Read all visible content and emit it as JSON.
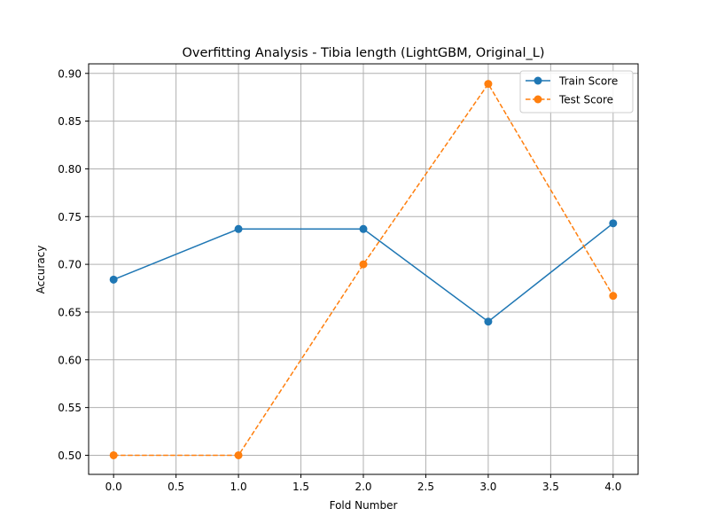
{
  "chart_data": {
    "type": "line",
    "title": "Overfitting Analysis - Tibia length (LightGBM, Original_L)",
    "xlabel": "Fold Number",
    "ylabel": "Accuracy",
    "x": [
      0,
      1,
      2,
      3,
      4
    ],
    "xlim": [
      -0.2,
      4.2
    ],
    "ylim": [
      0.48,
      0.91
    ],
    "xticks": [
      "0.0",
      "0.5",
      "1.0",
      "1.5",
      "2.0",
      "2.5",
      "3.0",
      "3.5",
      "4.0"
    ],
    "yticks": [
      "0.50",
      "0.55",
      "0.60",
      "0.65",
      "0.70",
      "0.75",
      "0.80",
      "0.85",
      "0.90"
    ],
    "grid": true,
    "legend_position": "top-right",
    "series": [
      {
        "name": "Train Score",
        "values": [
          0.684,
          0.737,
          0.737,
          0.64,
          0.743
        ],
        "color": "#1f77b4",
        "linestyle": "solid",
        "marker": "circle"
      },
      {
        "name": "Test Score",
        "values": [
          0.5,
          0.5,
          0.7,
          0.889,
          0.667
        ],
        "color": "#ff7f0e",
        "linestyle": "dashed",
        "marker": "circle"
      }
    ]
  }
}
